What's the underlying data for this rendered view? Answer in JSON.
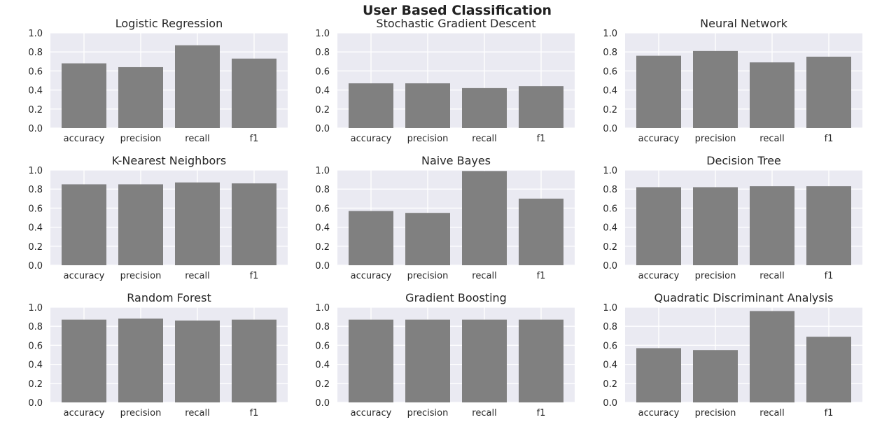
{
  "figure": {
    "title": "User Based Classification",
    "background_color": "#ffffff",
    "axes_background_color": "#eaeaf2",
    "grid_color": "#ffffff",
    "bar_color": "#808080"
  },
  "chart_data": [
    {
      "type": "bar",
      "title": "Logistic Regression",
      "categories": [
        "accuracy",
        "precision",
        "recall",
        "f1"
      ],
      "values": [
        0.68,
        0.64,
        0.87,
        0.73
      ],
      "ylim": [
        0,
        1.0
      ],
      "yticks": [
        "0.0",
        "0.2",
        "0.4",
        "0.6",
        "0.8",
        "1.0"
      ],
      "grid": true
    },
    {
      "type": "bar",
      "title": "Stochastic Gradient Descent",
      "categories": [
        "accuracy",
        "precision",
        "recall",
        "f1"
      ],
      "values": [
        0.47,
        0.47,
        0.42,
        0.44
      ],
      "ylim": [
        0,
        1.0
      ],
      "yticks": [
        "0.0",
        "0.2",
        "0.4",
        "0.6",
        "0.8",
        "1.0"
      ],
      "grid": true
    },
    {
      "type": "bar",
      "title": "Neural Network",
      "categories": [
        "accuracy",
        "precision",
        "recall",
        "f1"
      ],
      "values": [
        0.76,
        0.81,
        0.69,
        0.75
      ],
      "ylim": [
        0,
        1.0
      ],
      "yticks": [
        "0.0",
        "0.2",
        "0.4",
        "0.6",
        "0.8",
        "1.0"
      ],
      "grid": true
    },
    {
      "type": "bar",
      "title": "K-Nearest Neighbors",
      "categories": [
        "accuracy",
        "precision",
        "recall",
        "f1"
      ],
      "values": [
        0.85,
        0.85,
        0.87,
        0.86
      ],
      "ylim": [
        0,
        1.0
      ],
      "yticks": [
        "0.0",
        "0.2",
        "0.4",
        "0.6",
        "0.8",
        "1.0"
      ],
      "grid": true
    },
    {
      "type": "bar",
      "title": "Naive Bayes",
      "categories": [
        "accuracy",
        "precision",
        "recall",
        "f1"
      ],
      "values": [
        0.57,
        0.55,
        0.99,
        0.7
      ],
      "ylim": [
        0,
        1.0
      ],
      "yticks": [
        "0.0",
        "0.2",
        "0.4",
        "0.6",
        "0.8",
        "1.0"
      ],
      "grid": true
    },
    {
      "type": "bar",
      "title": "Decision Tree",
      "categories": [
        "accuracy",
        "precision",
        "recall",
        "f1"
      ],
      "values": [
        0.82,
        0.82,
        0.83,
        0.83
      ],
      "ylim": [
        0,
        1.0
      ],
      "yticks": [
        "0.0",
        "0.2",
        "0.4",
        "0.6",
        "0.8",
        "1.0"
      ],
      "grid": true
    },
    {
      "type": "bar",
      "title": "Random Forest",
      "categories": [
        "accuracy",
        "precision",
        "recall",
        "f1"
      ],
      "values": [
        0.87,
        0.88,
        0.86,
        0.87
      ],
      "ylim": [
        0,
        1.0
      ],
      "yticks": [
        "0.0",
        "0.2",
        "0.4",
        "0.6",
        "0.8",
        "1.0"
      ],
      "grid": true
    },
    {
      "type": "bar",
      "title": "Gradient Boosting",
      "categories": [
        "accuracy",
        "precision",
        "recall",
        "f1"
      ],
      "values": [
        0.87,
        0.87,
        0.87,
        0.87
      ],
      "ylim": [
        0,
        1.0
      ],
      "yticks": [
        "0.0",
        "0.2",
        "0.4",
        "0.6",
        "0.8",
        "1.0"
      ],
      "grid": true
    },
    {
      "type": "bar",
      "title": "Quadratic Discriminant Analysis",
      "categories": [
        "accuracy",
        "precision",
        "recall",
        "f1"
      ],
      "values": [
        0.57,
        0.55,
        0.96,
        0.69
      ],
      "ylim": [
        0,
        1.0
      ],
      "yticks": [
        "0.0",
        "0.2",
        "0.4",
        "0.6",
        "0.8",
        "1.0"
      ],
      "grid": true
    }
  ]
}
